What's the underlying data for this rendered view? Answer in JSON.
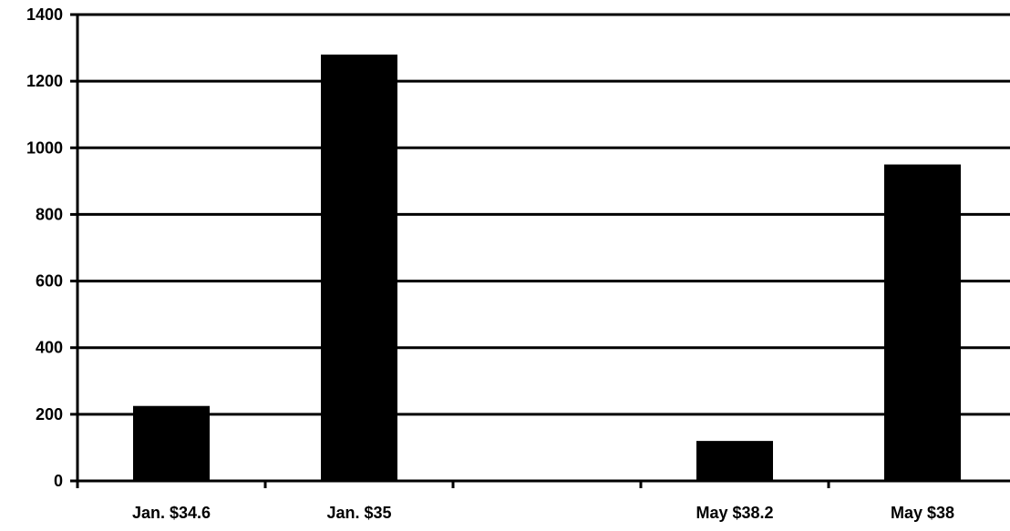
{
  "chart_data": {
    "type": "bar",
    "categories": [
      "Jan. $34.6",
      "Jan. $35",
      "",
      "May $38.2",
      "May $38"
    ],
    "values": [
      225,
      1280,
      null,
      120,
      950
    ],
    "ylim": [
      0,
      1400
    ],
    "yticks": [
      0,
      200,
      400,
      600,
      800,
      1000,
      1200,
      1400
    ],
    "grid": true,
    "legend": "none",
    "bar_color": "#000000",
    "line_color": "#000000"
  }
}
